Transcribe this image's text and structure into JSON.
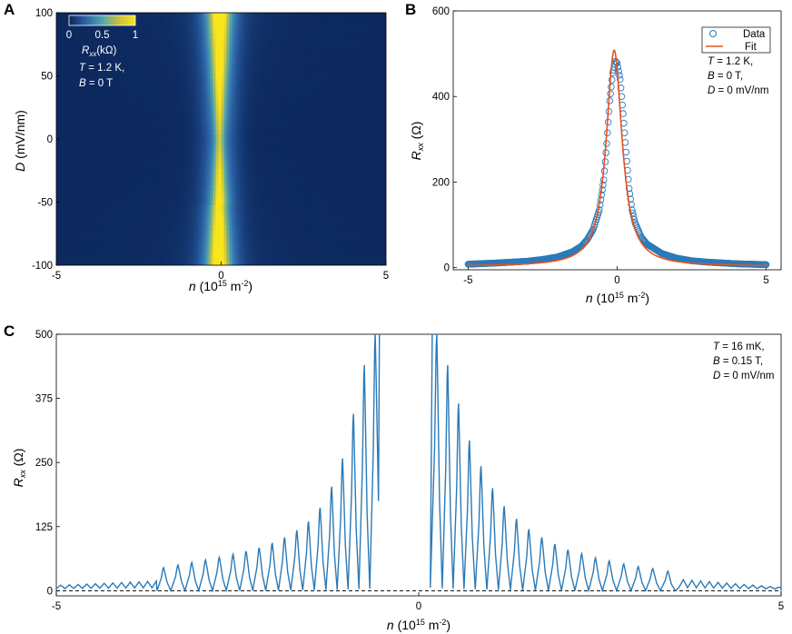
{
  "chart_data": [
    {
      "panel": "A",
      "type": "heatmap",
      "xlabel": "n (10^15 m^-2)",
      "ylabel": "D (mV/nm)",
      "xlim": [
        -5,
        5
      ],
      "ylim": [
        -100,
        100
      ],
      "xticks": [
        -5,
        0,
        5
      ],
      "yticks": [
        -100,
        -50,
        0,
        50,
        100
      ],
      "colorbar": {
        "label": "R_xx (kΩ)",
        "ticks": [
          0,
          0.5,
          1
        ],
        "range": [
          0,
          1
        ],
        "colormap": "parula",
        "placement": "top-left inside"
      },
      "annotation": {
        "T": "T = 1.2 K,",
        "B": "B = 0 T"
      },
      "peak": {
        "n_center": -0.05,
        "n_halfwidth_bright": 0.15,
        "n_halfwidth_tails": 1.0,
        "neck_D": 0,
        "break_D": -50
      }
    },
    {
      "panel": "B",
      "type": "scatter",
      "xlabel": "n (10^15 m^-2)",
      "ylabel": "R_xx (Ω)",
      "xlim": [
        -5.5,
        5.5
      ],
      "ylim": [
        -5,
        600
      ],
      "xticks": [
        -5,
        0,
        5
      ],
      "yticks": [
        0,
        200,
        400,
        600
      ],
      "legend": {
        "placement": "top-right",
        "entries": [
          "Data",
          "Fit"
        ]
      },
      "series": [
        {
          "name": "Data",
          "style": "open-circle",
          "color": "#2a7ab8",
          "points": [
            [
              -5,
              8
            ],
            [
              -4,
              11
            ],
            [
              -3,
              15
            ],
            [
              -2.5,
              19
            ],
            [
              -2,
              25
            ],
            [
              -1.5,
              37
            ],
            [
              -1.2,
              50
            ],
            [
              -1,
              66
            ],
            [
              -0.8,
              90
            ],
            [
              -0.6,
              135
            ],
            [
              -0.45,
              205
            ],
            [
              -0.35,
              290
            ],
            [
              -0.25,
              390
            ],
            [
              -0.15,
              455
            ],
            [
              -0.05,
              482
            ],
            [
              0,
              478
            ],
            [
              0.1,
              440
            ],
            [
              0.2,
              360
            ],
            [
              0.3,
              270
            ],
            [
              0.4,
              185
            ],
            [
              0.5,
              135
            ],
            [
              0.6,
              105
            ],
            [
              0.8,
              72
            ],
            [
              1,
              55
            ],
            [
              1.5,
              33
            ],
            [
              2,
              22
            ],
            [
              2.5,
              16
            ],
            [
              3,
              13
            ],
            [
              4,
              9
            ],
            [
              5,
              7
            ]
          ]
        },
        {
          "name": "Fit",
          "style": "line",
          "color": "#e8501f",
          "model": "lorentzian",
          "params": {
            "amplitude": 505,
            "center": -0.1,
            "half_width": 0.32,
            "offset": 3
          }
        }
      ],
      "annotation": {
        "T": "T = 1.2 K,",
        "B": "B = 0 T,",
        "D": "D = 0 mV/nm"
      }
    },
    {
      "panel": "C",
      "type": "line",
      "xlabel": "n (10^15 m^-2)",
      "ylabel": "R_xx (Ω)",
      "xlim": [
        -5,
        5
      ],
      "ylim": [
        -10,
        500
      ],
      "xticks": [
        -5,
        0,
        5
      ],
      "yticks": [
        0,
        125,
        250,
        375,
        500
      ],
      "baseline": {
        "y": 0,
        "style": "dashed"
      },
      "series": [
        {
          "name": "",
          "color": "#2a7ab8",
          "peaks": [
            {
              "n": -0.6,
              "R": 500
            },
            {
              "n": -0.75,
              "R": 440
            },
            {
              "n": -0.9,
              "R": 345
            },
            {
              "n": -1.05,
              "R": 258
            },
            {
              "n": -1.2,
              "R": 203
            },
            {
              "n": -1.36,
              "R": 162
            },
            {
              "n": -1.52,
              "R": 135
            },
            {
              "n": -1.68,
              "R": 118
            },
            {
              "n": -1.85,
              "R": 104
            },
            {
              "n": -2.02,
              "R": 93
            },
            {
              "n": -2.2,
              "R": 84
            },
            {
              "n": -2.38,
              "R": 77
            },
            {
              "n": -2.56,
              "R": 71
            },
            {
              "n": -2.75,
              "R": 65
            },
            {
              "n": -2.94,
              "R": 60
            },
            {
              "n": -3.13,
              "R": 55
            },
            {
              "n": -3.32,
              "R": 50
            },
            {
              "n": -3.52,
              "R": 45
            },
            {
              "n": 0.25,
              "R": 500
            },
            {
              "n": 0.4,
              "R": 440
            },
            {
              "n": 0.55,
              "R": 365
            },
            {
              "n": 0.7,
              "R": 293
            },
            {
              "n": 0.86,
              "R": 243
            },
            {
              "n": 1.02,
              "R": 200
            },
            {
              "n": 1.18,
              "R": 165
            },
            {
              "n": 1.35,
              "R": 140
            },
            {
              "n": 1.52,
              "R": 120
            },
            {
              "n": 1.7,
              "R": 104
            },
            {
              "n": 1.88,
              "R": 91
            },
            {
              "n": 2.06,
              "R": 80
            },
            {
              "n": 2.25,
              "R": 72
            },
            {
              "n": 2.44,
              "R": 64
            },
            {
              "n": 2.63,
              "R": 58
            },
            {
              "n": 2.83,
              "R": 52
            },
            {
              "n": 3.03,
              "R": 47
            },
            {
              "n": 3.23,
              "R": 43
            },
            {
              "n": 3.44,
              "R": 38
            }
          ],
          "tail_level": 12
        }
      ],
      "annotation": {
        "T": "T = 16 mK,",
        "B": "B = 0.15 T,",
        "D": "D = 0 mV/nm"
      }
    }
  ]
}
